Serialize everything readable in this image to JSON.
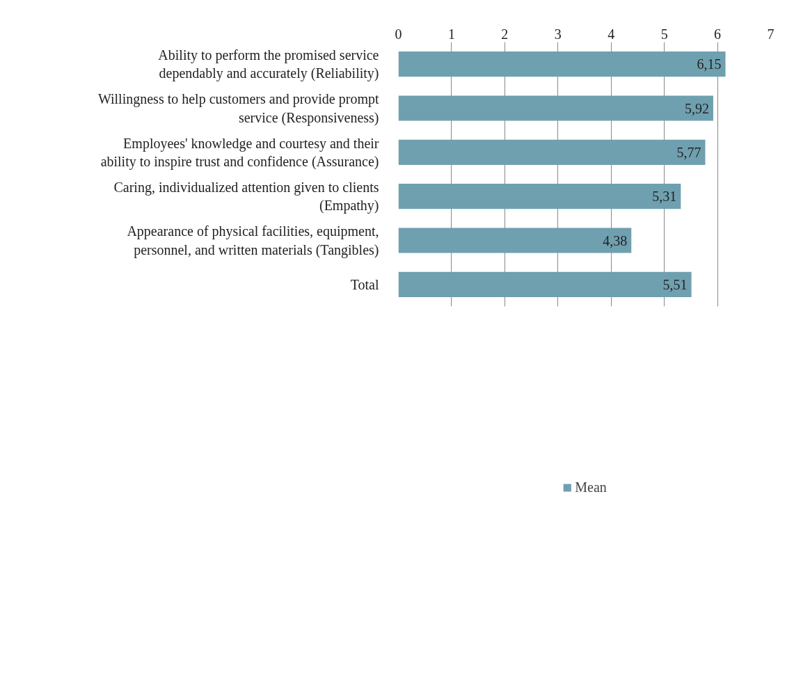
{
  "chart_data": {
    "type": "bar",
    "orientation": "horizontal",
    "categories": [
      "Ability to perform the promised service\ndependably and accurately (Reliability)",
      "Willingness to help customers and provide prompt\nservice (Responsiveness)",
      "Employees' knowledge and courtesy and their\nability to inspire trust and confidence (Assurance)",
      "Caring, individualized attention given to clients\n(Empathy)",
      "Appearance of physical facilities, equipment,\npersonnel, and written materials (Tangibles)",
      "Total"
    ],
    "series": [
      {
        "name": "Mean",
        "color": "#6fa0b0",
        "values": [
          6.15,
          5.92,
          5.77,
          5.31,
          4.38,
          5.51
        ],
        "value_labels": [
          "6,15",
          "5,92",
          "5,77",
          "5,31",
          "4,38",
          "5,51"
        ]
      }
    ],
    "xlim": [
      0,
      7
    ],
    "xticks": [
      0,
      1,
      2,
      3,
      4,
      5,
      6,
      7
    ],
    "grid": "x",
    "legend": "bottom"
  }
}
